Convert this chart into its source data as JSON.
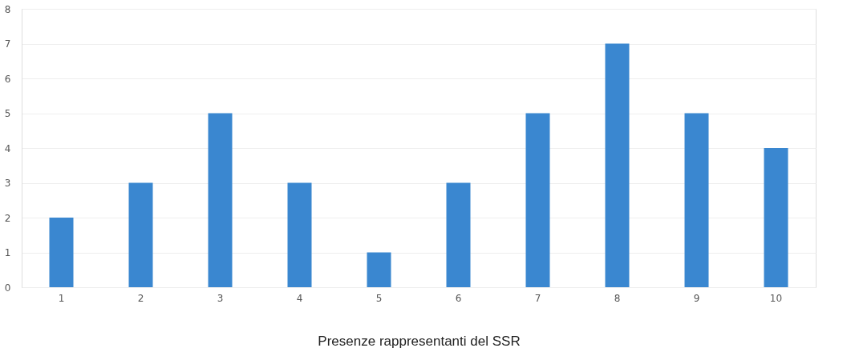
{
  "chart_data": {
    "type": "bar",
    "xlabel": "Presenze rappresentanti del SSR",
    "categories": [
      "1",
      "2",
      "3",
      "4",
      "5",
      "6",
      "7",
      "8",
      "9",
      "10"
    ],
    "values": [
      2,
      3,
      5,
      3,
      1,
      3,
      5,
      7,
      5,
      4
    ],
    "color": "#3a87d0",
    "ylim": [
      0,
      8
    ],
    "yticks": [
      0,
      1,
      2,
      3,
      4,
      5,
      6,
      7,
      8
    ],
    "grid": "y"
  }
}
